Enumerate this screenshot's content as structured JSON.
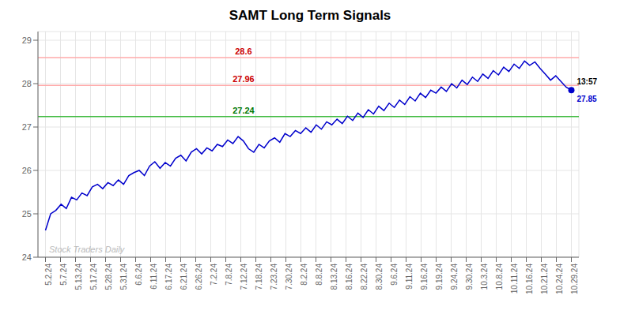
{
  "chart_data": {
    "type": "line",
    "title": "SAMT Long Term Signals",
    "color": "#0000cc",
    "x": [
      0,
      0.34653465,
      0.6930693,
      1.03960396,
      1.38613861,
      1.73267326,
      2.07920792,
      2.42574257,
      2.77227722,
      3.11881188,
      3.46534653,
      3.81188118,
      4.15841584,
      4.50495049,
      4.85148514,
      5.1980198,
      5.54455445,
      5.8910891,
      6.23762376,
      6.58415841,
      6.93069306,
      7.27722772,
      7.62376237,
      7.97029702,
      8.31683168,
      8.66336633,
      9.00990099,
      9.35643564,
      9.70297029,
      10.04950495,
      10.3960396,
      10.74257425,
      11.08910891,
      11.43564356,
      11.78217821,
      12.12871287,
      12.47524752,
      12.82178217,
      13.16831683,
      13.51485148,
      13.86138613,
      14.20792079,
      14.55445544,
      14.90099009,
      15.24752475,
      15.5940594,
      15.94059405,
      16.28712871,
      16.63366336,
      16.98019801,
      17.32673267,
      17.67326732,
      18.01980198,
      18.36633663,
      18.71287128,
      19.05940594,
      19.40594059,
      19.75247524,
      20.0990099,
      20.44554455,
      20.7920792,
      21.13861386,
      21.48514851,
      21.83168316,
      22.17821782,
      22.52475247,
      22.87128712,
      23.21782178,
      23.56435643,
      23.91089108,
      24.25742574,
      24.60396039,
      24.95049504,
      25.2970297,
      25.64356435,
      25.990099,
      26.33663366,
      26.68316831,
      27.02970297,
      27.37623762,
      27.72277227,
      28.06930693,
      28.41584158,
      28.76237623,
      29.10891089,
      29.45544554,
      29.80198019,
      30.14851485,
      30.4950495,
      30.84158415,
      31.18811881,
      31.53465346,
      31.88118811,
      32.22772277,
      32.57425742,
      32.92079207,
      33.26732673,
      33.61386138,
      33.96039603,
      34.30693069,
      34.65346534,
      35
    ],
    "values": [
      24.62,
      25.0,
      25.08,
      25.22,
      25.12,
      25.38,
      25.32,
      25.48,
      25.42,
      25.62,
      25.68,
      25.58,
      25.72,
      25.65,
      25.78,
      25.68,
      25.88,
      25.95,
      26.0,
      25.88,
      26.1,
      26.2,
      26.05,
      26.18,
      26.1,
      26.28,
      26.35,
      26.22,
      26.42,
      26.5,
      26.38,
      26.52,
      26.45,
      26.6,
      26.55,
      26.7,
      26.62,
      26.78,
      26.68,
      26.5,
      26.42,
      26.6,
      26.52,
      26.68,
      26.75,
      26.65,
      26.85,
      26.78,
      26.92,
      26.85,
      26.98,
      26.88,
      27.05,
      26.95,
      27.12,
      27.05,
      27.18,
      27.08,
      27.25,
      27.15,
      27.32,
      27.22,
      27.4,
      27.3,
      27.48,
      27.38,
      27.55,
      27.45,
      27.62,
      27.52,
      27.7,
      27.6,
      27.78,
      27.68,
      27.85,
      27.78,
      27.92,
      27.82,
      28.0,
      27.9,
      28.08,
      27.98,
      28.15,
      28.05,
      28.22,
      28.12,
      28.3,
      28.2,
      28.38,
      28.28,
      28.45,
      28.35,
      28.52,
      28.42,
      28.5,
      28.35,
      28.22,
      28.08,
      28.18,
      28.05,
      27.92,
      27.85
    ],
    "xlim": [
      -0.5,
      35.5
    ],
    "xticks": [
      {
        "value": 0,
        "label": "5.2.24"
      },
      {
        "value": 1,
        "label": "5.7.24"
      },
      {
        "value": 2,
        "label": "5.13.24"
      },
      {
        "value": 3,
        "label": "5.17.24"
      },
      {
        "value": 4,
        "label": "5.28.24"
      },
      {
        "value": 5,
        "label": "5.31.24"
      },
      {
        "value": 6,
        "label": "6.6.24"
      },
      {
        "value": 7,
        "label": "6.11.24"
      },
      {
        "value": 8,
        "label": "6.17.24"
      },
      {
        "value": 9,
        "label": "6.21.24"
      },
      {
        "value": 10,
        "label": "6.26.24"
      },
      {
        "value": 11,
        "label": "7.2.24"
      },
      {
        "value": 12,
        "label": "7.8.24"
      },
      {
        "value": 13,
        "label": "7.12.24"
      },
      {
        "value": 14,
        "label": "7.18.24"
      },
      {
        "value": 15,
        "label": "7.23.24"
      },
      {
        "value": 16,
        "label": "7.30.24"
      },
      {
        "value": 17,
        "label": "8.2.24"
      },
      {
        "value": 18,
        "label": "8.8.24"
      },
      {
        "value": 19,
        "label": "8.13.24"
      },
      {
        "value": 20,
        "label": "8.16.24"
      },
      {
        "value": 21,
        "label": "8.22.24"
      },
      {
        "value": 22,
        "label": "8.30.24"
      },
      {
        "value": 23,
        "label": "9.6.24"
      },
      {
        "value": 24,
        "label": "9.11.24"
      },
      {
        "value": 25,
        "label": "9.16.24"
      },
      {
        "value": 26,
        "label": "9.19.24"
      },
      {
        "value": 27,
        "label": "9.24.24"
      },
      {
        "value": 28,
        "label": "9.30.24"
      },
      {
        "value": 29,
        "label": "10.3.24"
      },
      {
        "value": 30,
        "label": "10.8.24"
      },
      {
        "value": 31,
        "label": "10.11.24"
      },
      {
        "value": 32,
        "label": "10.16.24"
      },
      {
        "value": 33,
        "label": "10.21.24"
      },
      {
        "value": 34,
        "label": "10.24.24"
      },
      {
        "value": 35,
        "label": "10.29.24"
      }
    ],
    "ylim": [
      24.0,
      29.2
    ],
    "yticks": [
      24,
      25,
      26,
      27,
      28,
      29
    ],
    "grid": true,
    "reference_lines": [
      {
        "y": 28.6,
        "label": "28.6",
        "color": "#ffaaaa",
        "label_color": "#cc0000"
      },
      {
        "y": 27.96,
        "label": "27.96",
        "color": "#ffaaaa",
        "label_color": "#cc0000"
      },
      {
        "y": 27.24,
        "label": "27.24",
        "color": "#44bb44",
        "label_color": "#007700"
      }
    ],
    "last_point": {
      "x": 35,
      "y": 27.85,
      "time": "13:57",
      "label": "27.85",
      "color": "#0000cc"
    },
    "watermark": "Stock Traders Daily",
    "watermark_color": "#bbbbbb"
  }
}
